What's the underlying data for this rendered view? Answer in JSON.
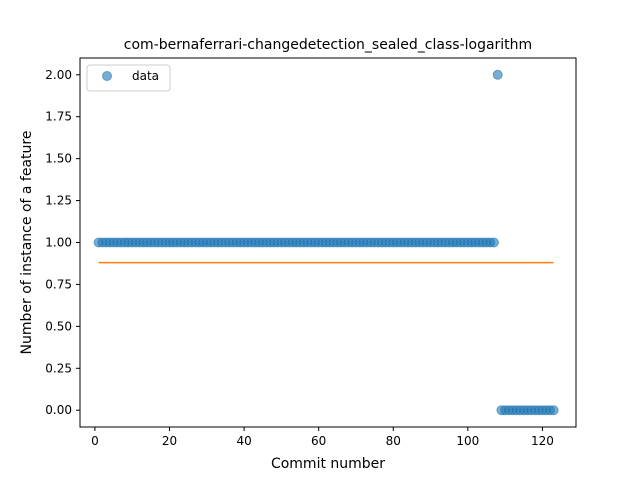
{
  "chart_data": {
    "type": "scatter",
    "title": "com-bernaferrari-changedetection_sealed_class-logarithm",
    "xlabel": "Commit number",
    "ylabel": "Number of instance of a feature",
    "xlim": [
      -4,
      129
    ],
    "ylim": [
      -0.1,
      2.1
    ],
    "xticks": [
      0,
      20,
      40,
      60,
      80,
      100,
      120
    ],
    "yticks": [
      "0.00",
      "0.25",
      "0.50",
      "0.75",
      "1.00",
      "1.25",
      "1.50",
      "1.75",
      "2.00"
    ],
    "legend": {
      "position": "top-left",
      "entries": [
        "data"
      ]
    },
    "grid": false,
    "colors": {
      "data": "#1f77b4",
      "fit": "#ff7f0e"
    },
    "series": [
      {
        "name": "data",
        "kind": "scatter",
        "segments": [
          {
            "x_start": 1,
            "x_end": 107,
            "y": 1
          },
          {
            "x_start": 108,
            "x_end": 108,
            "y": 2
          },
          {
            "x_start": 109,
            "x_end": 123,
            "y": 0
          }
        ]
      },
      {
        "kind": "line",
        "x": [
          1,
          123
        ],
        "y": [
          0.88,
          0.88
        ]
      }
    ]
  }
}
